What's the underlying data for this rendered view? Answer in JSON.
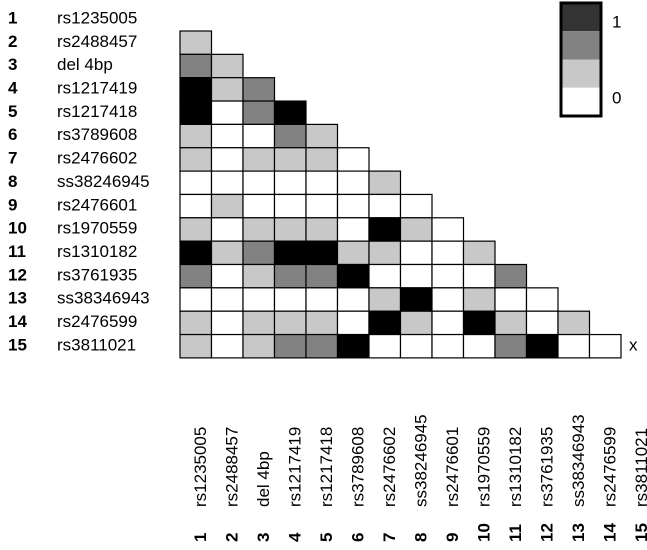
{
  "snps": [
    {
      "num": "1",
      "name": "rs1235005"
    },
    {
      "num": "2",
      "name": "rs2488457"
    },
    {
      "num": "3",
      "name": "del 4bp"
    },
    {
      "num": "4",
      "name": "rs1217419"
    },
    {
      "num": "5",
      "name": "rs1217418"
    },
    {
      "num": "6",
      "name": "rs3789608"
    },
    {
      "num": "7",
      "name": "rs2476602"
    },
    {
      "num": "8",
      "name": "ss38246945"
    },
    {
      "num": "9",
      "name": "rs2476601"
    },
    {
      "num": "10",
      "name": "rs1970559"
    },
    {
      "num": "11",
      "name": "rs1310182"
    },
    {
      "num": "12",
      "name": "rs3761935"
    },
    {
      "num": "13",
      "name": "ss38346943"
    },
    {
      "num": "14",
      "name": "rs2476599"
    },
    {
      "num": "15",
      "name": "rs3811021"
    }
  ],
  "matrix": {
    "levels": [
      "#ffffff",
      "#c8c8c8",
      "#828282",
      "#000000"
    ],
    "rows": [
      [
        1
      ],
      [
        2,
        1
      ],
      [
        3,
        1,
        2
      ],
      [
        3,
        0,
        2,
        3
      ],
      [
        1,
        0,
        0,
        2,
        1
      ],
      [
        1,
        0,
        1,
        1,
        1,
        0
      ],
      [
        0,
        0,
        0,
        0,
        0,
        0,
        1
      ],
      [
        0,
        1,
        0,
        0,
        0,
        0,
        0,
        0
      ],
      [
        1,
        0,
        1,
        1,
        1,
        0,
        3,
        1,
        0
      ],
      [
        3,
        1,
        2,
        3,
        3,
        1,
        1,
        0,
        0,
        1
      ],
      [
        2,
        0,
        1,
        2,
        2,
        3,
        0,
        0,
        0,
        0,
        2
      ],
      [
        0,
        0,
        0,
        0,
        0,
        0,
        1,
        3,
        0,
        1,
        0,
        0
      ],
      [
        1,
        0,
        1,
        1,
        1,
        0,
        3,
        1,
        0,
        3,
        1,
        0,
        1
      ],
      [
        1,
        0,
        1,
        2,
        2,
        3,
        0,
        0,
        0,
        0,
        2,
        3,
        0,
        0
      ]
    ],
    "terminal_mark": "x"
  },
  "legend": {
    "max_label": "1",
    "min_label": "0",
    "swatches": [
      "#333333",
      "#828282",
      "#c8c8c8",
      "#ffffff"
    ]
  }
}
